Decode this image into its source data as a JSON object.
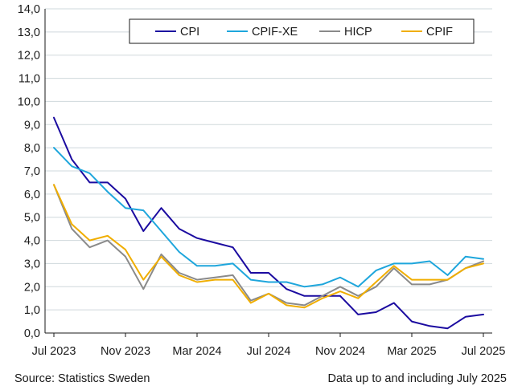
{
  "chart_data": {
    "type": "line",
    "x": [
      "2023-07",
      "2023-08",
      "2023-09",
      "2023-10",
      "2023-11",
      "2023-12",
      "2024-01",
      "2024-02",
      "2024-03",
      "2024-04",
      "2024-05",
      "2024-06",
      "2024-07",
      "2024-08",
      "2024-09",
      "2024-10",
      "2024-11",
      "2024-12",
      "2025-01",
      "2025-02",
      "2025-03",
      "2025-04",
      "2025-05",
      "2025-06",
      "2025-07"
    ],
    "xticks": [
      "Jul 2023",
      "Nov 2023",
      "Mar 2024",
      "Jul 2024",
      "Nov 2024",
      "Mar 2025",
      "Jul 2025"
    ],
    "ylim": [
      0,
      14
    ],
    "yticks": [
      "0,0",
      "1,0",
      "2,0",
      "3,0",
      "4,0",
      "5,0",
      "6,0",
      "7,0",
      "8,0",
      "9,0",
      "10,0",
      "11,0",
      "12,0",
      "13,0",
      "14,0"
    ],
    "grid": true,
    "legend_position": "top-right",
    "series": [
      {
        "name": "CPI",
        "color": "#1b0ba0",
        "values": [
          9.3,
          7.5,
          6.5,
          6.5,
          5.8,
          4.4,
          5.4,
          4.5,
          4.1,
          3.9,
          3.7,
          2.6,
          2.6,
          1.9,
          1.6,
          1.6,
          1.6,
          0.8,
          0.9,
          1.3,
          0.5,
          0.3,
          0.2,
          0.7,
          0.8
        ]
      },
      {
        "name": "CPIF-XE",
        "color": "#1ea6dc",
        "values": [
          8.0,
          7.2,
          6.9,
          6.1,
          5.4,
          5.3,
          4.4,
          3.5,
          2.9,
          2.9,
          3.0,
          2.3,
          2.2,
          2.2,
          2.0,
          2.1,
          2.4,
          2.0,
          2.7,
          3.0,
          3.0,
          3.1,
          2.5,
          3.3,
          3.2
        ]
      },
      {
        "name": "HICP",
        "color": "#8a8a8a",
        "values": [
          6.4,
          4.5,
          3.7,
          4.0,
          3.3,
          1.9,
          3.4,
          2.6,
          2.3,
          2.4,
          2.5,
          1.4,
          1.7,
          1.3,
          1.2,
          1.6,
          2.0,
          1.6,
          2.0,
          2.8,
          2.1,
          2.1,
          2.3,
          2.8,
          3.1
        ]
      },
      {
        "name": "CPIF",
        "color": "#f0ae00",
        "values": [
          6.4,
          4.7,
          4.0,
          4.2,
          3.6,
          2.3,
          3.3,
          2.5,
          2.2,
          2.3,
          2.3,
          1.3,
          1.7,
          1.2,
          1.1,
          1.5,
          1.8,
          1.5,
          2.2,
          2.9,
          2.3,
          2.3,
          2.3,
          2.8,
          3.0
        ]
      }
    ]
  },
  "footer": {
    "source": "Source: Statistics Sweden",
    "note": "Data up to and including July 2025"
  }
}
